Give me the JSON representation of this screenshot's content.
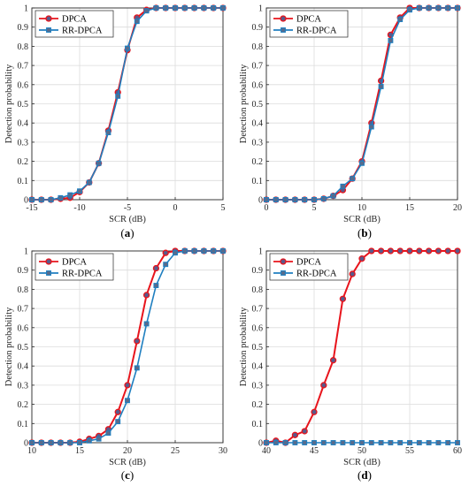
{
  "chart_data": [
    {
      "type": "line",
      "panel_label": "(a)",
      "panel_letter": "a",
      "xlabel": "SCR (dB)",
      "ylabel": "Detection probability",
      "xlim": [
        -15,
        5
      ],
      "ylim": [
        0,
        1
      ],
      "xticks": [
        -15,
        -10,
        -5,
        0,
        5
      ],
      "yticks": [
        0,
        0.1,
        0.2,
        0.3,
        0.4,
        0.5,
        0.6,
        0.7,
        0.8,
        0.9,
        1
      ],
      "grid": true,
      "legend_position": "top-left",
      "series": [
        {
          "name": "DPCA",
          "color": "#e8141c",
          "marker": "circle",
          "x": [
            -15,
            -14,
            -13,
            -12,
            -11,
            -10,
            -9,
            -8,
            -7,
            -6,
            -5,
            -4,
            -3,
            -2,
            -1,
            0,
            1,
            2,
            3,
            4,
            5
          ],
          "y": [
            0,
            0,
            0,
            0.005,
            0.01,
            0.04,
            0.09,
            0.19,
            0.36,
            0.56,
            0.78,
            0.95,
            0.99,
            1,
            1,
            1,
            1,
            1,
            1,
            1,
            1
          ]
        },
        {
          "name": "RR-DPCA",
          "color": "#1f7fc0",
          "marker": "square",
          "x": [
            -15,
            -14,
            -13,
            -12,
            -11,
            -10,
            -9,
            -8,
            -7,
            -6,
            -5,
            -4,
            -3,
            -2,
            -1,
            0,
            1,
            2,
            3,
            4,
            5
          ],
          "y": [
            0,
            0,
            0,
            0.01,
            0.025,
            0.045,
            0.09,
            0.19,
            0.35,
            0.54,
            0.79,
            0.93,
            0.985,
            1,
            1,
            1,
            1,
            1,
            1,
            1,
            1
          ]
        }
      ]
    },
    {
      "type": "line",
      "panel_label": "(b)",
      "panel_letter": "b",
      "xlabel": "SCR (dB)",
      "ylabel": "Detection probability",
      "xlim": [
        0,
        20
      ],
      "ylim": [
        0,
        1
      ],
      "xticks": [
        0,
        5,
        10,
        15,
        20
      ],
      "yticks": [
        0,
        0.1,
        0.2,
        0.3,
        0.4,
        0.5,
        0.6,
        0.7,
        0.8,
        0.9,
        1
      ],
      "grid": true,
      "legend_position": "top-left",
      "series": [
        {
          "name": "DPCA",
          "color": "#e8141c",
          "marker": "circle",
          "x": [
            0,
            1,
            2,
            3,
            4,
            5,
            6,
            7,
            8,
            9,
            10,
            11,
            12,
            13,
            14,
            15,
            16,
            17,
            18,
            19,
            20
          ],
          "y": [
            0,
            0,
            0,
            0,
            0,
            0,
            0.005,
            0.02,
            0.05,
            0.11,
            0.2,
            0.4,
            0.62,
            0.86,
            0.95,
            1,
            1,
            1,
            1,
            1,
            1
          ]
        },
        {
          "name": "RR-DPCA",
          "color": "#1f7fc0",
          "marker": "square",
          "x": [
            0,
            1,
            2,
            3,
            4,
            5,
            6,
            7,
            8,
            9,
            10,
            11,
            12,
            13,
            14,
            15,
            16,
            17,
            18,
            19,
            20
          ],
          "y": [
            0,
            0,
            0,
            0,
            0,
            0,
            0.005,
            0.02,
            0.07,
            0.11,
            0.19,
            0.38,
            0.59,
            0.83,
            0.94,
            0.99,
            1,
            1,
            1,
            1,
            1
          ]
        }
      ]
    },
    {
      "type": "line",
      "panel_label": "(c)",
      "panel_letter": "c",
      "xlabel": "SCR (dB)",
      "ylabel": "Detection probability",
      "xlim": [
        10,
        30
      ],
      "ylim": [
        0,
        1
      ],
      "xticks": [
        10,
        15,
        20,
        25,
        30
      ],
      "yticks": [
        0,
        0.1,
        0.2,
        0.3,
        0.4,
        0.5,
        0.6,
        0.7,
        0.8,
        0.9,
        1
      ],
      "grid": true,
      "legend_position": "top-left",
      "series": [
        {
          "name": "DPCA",
          "color": "#e8141c",
          "marker": "circle",
          "x": [
            10,
            11,
            12,
            13,
            14,
            15,
            16,
            17,
            18,
            19,
            20,
            21,
            22,
            23,
            24,
            25,
            26,
            27,
            28,
            29,
            30
          ],
          "y": [
            0,
            0,
            0,
            0,
            0,
            0.005,
            0.02,
            0.035,
            0.07,
            0.16,
            0.3,
            0.53,
            0.77,
            0.91,
            0.99,
            1,
            1,
            1,
            1,
            1,
            1
          ]
        },
        {
          "name": "RR-DPCA",
          "color": "#1f7fc0",
          "marker": "square",
          "x": [
            10,
            11,
            12,
            13,
            14,
            15,
            16,
            17,
            18,
            19,
            20,
            21,
            22,
            23,
            24,
            25,
            26,
            27,
            28,
            29,
            30
          ],
          "y": [
            0,
            0,
            0,
            0,
            0,
            0,
            0.01,
            0.02,
            0.05,
            0.11,
            0.22,
            0.39,
            0.62,
            0.82,
            0.93,
            0.99,
            1,
            1,
            1,
            1,
            1
          ]
        }
      ]
    },
    {
      "type": "line",
      "panel_label": "(d)",
      "panel_letter": "d",
      "xlabel": "SCR (dB)",
      "ylabel": "Detection probability",
      "xlim": [
        40,
        60
      ],
      "ylim": [
        0,
        1
      ],
      "xticks": [
        40,
        45,
        50,
        55,
        60
      ],
      "yticks": [
        0,
        0.1,
        0.2,
        0.3,
        0.4,
        0.5,
        0.6,
        0.7,
        0.8,
        0.9,
        1
      ],
      "grid": true,
      "legend_position": "top-left",
      "series": [
        {
          "name": "DPCA",
          "color": "#e8141c",
          "marker": "circle",
          "x": [
            40,
            41,
            42,
            43,
            44,
            45,
            46,
            47,
            48,
            49,
            50,
            51,
            52,
            53,
            54,
            55,
            56,
            57,
            58,
            59,
            60
          ],
          "y": [
            0,
            0.01,
            0,
            0.04,
            0.06,
            0.16,
            0.3,
            0.43,
            0.75,
            0.88,
            0.96,
            1,
            1,
            1,
            1,
            1,
            1,
            1,
            1,
            1,
            1
          ]
        },
        {
          "name": "RR-DPCA",
          "color": "#1f7fc0",
          "marker": "square",
          "x": [
            40,
            41,
            42,
            43,
            44,
            45,
            46,
            47,
            48,
            49,
            50,
            51,
            52,
            53,
            54,
            55,
            56,
            57,
            58,
            59,
            60
          ],
          "y": [
            0,
            0,
            0,
            0,
            0,
            0,
            0,
            0,
            0,
            0,
            0,
            0,
            0,
            0,
            0,
            0,
            0,
            0,
            0,
            0,
            0
          ]
        }
      ]
    }
  ]
}
